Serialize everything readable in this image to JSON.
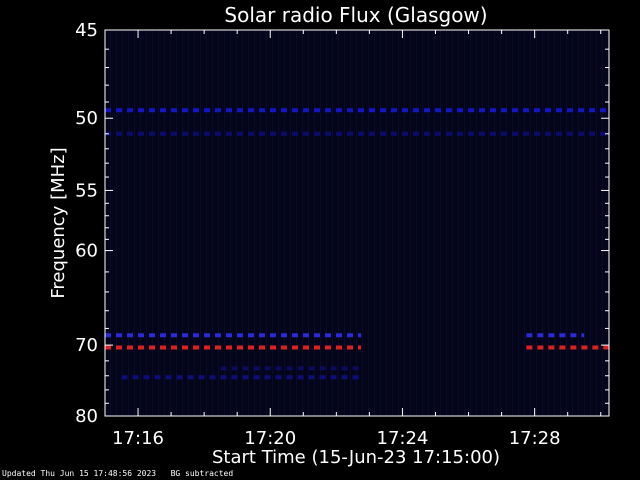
{
  "chart_data": {
    "type": "heatmap",
    "title": "Solar radio Flux (Glasgow)",
    "xlabel": "Start Time (15-Jun-23 17:15:00)",
    "ylabel": "Frequency [MHz]",
    "xlim": [
      "17:15:00",
      "17:30:15"
    ],
    "x_ticks": [
      "17:16",
      "17:20",
      "17:24",
      "17:28"
    ],
    "y_ticks": [
      45,
      50,
      55,
      60,
      70,
      80
    ],
    "y_tick_labels": [
      "45",
      "50",
      "55",
      "60",
      "70",
      "80"
    ],
    "background_color": "#05051a",
    "bands": [
      {
        "freq_mhz": 49.5,
        "start": "17:15:00",
        "end": "17:30:15",
        "color": "#1515c8"
      },
      {
        "freq_mhz": 51.0,
        "start": "17:15:00",
        "end": "17:30:15",
        "color": "#0b0b6e"
      },
      {
        "freq_mhz": 68.8,
        "start": "17:15:00",
        "end": "17:22:45",
        "color": "#2a2ad8"
      },
      {
        "freq_mhz": 68.8,
        "start": "17:27:45",
        "end": "17:29:30",
        "color": "#2a2ad8"
      },
      {
        "freq_mhz": 70.3,
        "start": "17:15:00",
        "end": "17:22:45",
        "color": "#e02020"
      },
      {
        "freq_mhz": 70.3,
        "start": "17:27:45",
        "end": "17:30:15",
        "color": "#e02020"
      },
      {
        "freq_mhz": 74.2,
        "start": "17:15:30",
        "end": "17:22:45",
        "color": "#0e0e7a"
      },
      {
        "freq_mhz": 73.0,
        "start": "17:18:30",
        "end": "17:22:45",
        "color": "#0b0b60"
      }
    ]
  },
  "footer": {
    "updated": "Updated Thu Jun 15 17:48:56 2023",
    "note": "BG subtracted"
  }
}
